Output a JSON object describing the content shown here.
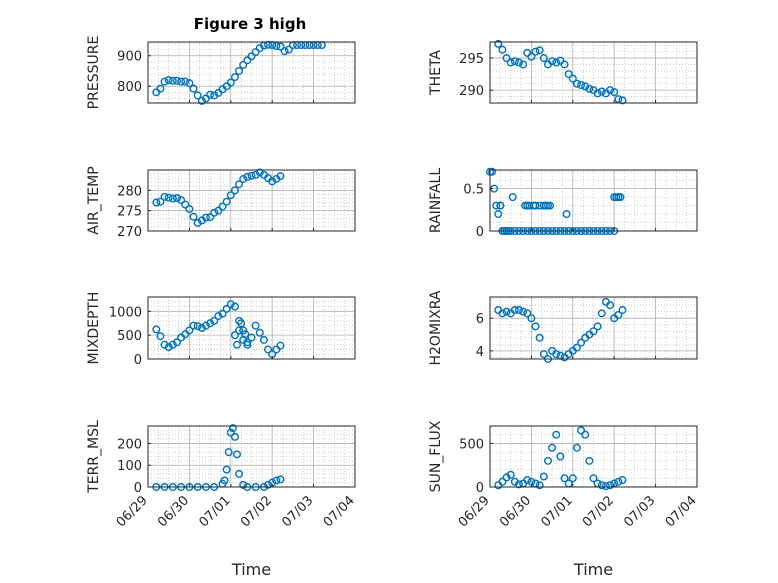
{
  "title": "Figure 3 high",
  "xlabel": "Time",
  "x_ticks": [
    "06/29",
    "06/30",
    "07/01",
    "07/02",
    "07/03",
    "07/04"
  ],
  "colors": {
    "marker": "#0072bd",
    "axis": "#262626",
    "grid": "#b0b0b0"
  },
  "chart_data": [
    {
      "type": "scatter",
      "name": "PRESSURE",
      "ylabel": "PRESSURE",
      "ylim": [
        745,
        945
      ],
      "yticks": [
        800,
        900
      ],
      "x": [
        0.2,
        0.3,
        0.4,
        0.5,
        0.6,
        0.7,
        0.8,
        0.9,
        1.0,
        1.1,
        1.2,
        1.3,
        1.4,
        1.5,
        1.6,
        1.7,
        1.8,
        1.9,
        2.0,
        2.1,
        2.2,
        2.3,
        2.4,
        2.5,
        2.6,
        2.7,
        2.8,
        2.9,
        3.0,
        3.1,
        3.2,
        3.3,
        3.4,
        3.5,
        3.6,
        3.7,
        3.8,
        3.9,
        4.0,
        4.1,
        4.2
      ],
      "y": [
        780,
        792,
        815,
        820,
        818,
        818,
        815,
        815,
        810,
        792,
        770,
        752,
        760,
        772,
        770,
        778,
        790,
        800,
        812,
        830,
        850,
        870,
        885,
        898,
        912,
        925,
        933,
        936,
        935,
        932,
        930,
        915,
        920,
        935,
        935,
        935,
        935,
        935,
        935,
        935,
        935
      ]
    },
    {
      "type": "scatter",
      "name": "THETA",
      "ylabel": "THETA",
      "ylim": [
        288,
        297.5
      ],
      "yticks": [
        290,
        295
      ],
      "x": [
        0.2,
        0.3,
        0.4,
        0.5,
        0.6,
        0.7,
        0.8,
        0.9,
        1.0,
        1.1,
        1.2,
        1.3,
        1.4,
        1.5,
        1.6,
        1.7,
        1.8,
        1.9,
        2.0,
        2.1,
        2.2,
        2.3,
        2.4,
        2.5,
        2.6,
        2.7,
        2.8,
        2.9,
        3.0,
        3.1,
        3.2
      ],
      "y": [
        297.2,
        296.3,
        295.0,
        294.3,
        294.5,
        294.3,
        294.0,
        295.8,
        295.2,
        296.0,
        296.2,
        295.0,
        294.0,
        294.5,
        294.3,
        294.6,
        294.0,
        292.5,
        291.8,
        291.0,
        290.8,
        290.6,
        290.2,
        290.0,
        289.5,
        289.8,
        289.5,
        290.0,
        289.7,
        288.6,
        288.4
      ]
    },
    {
      "type": "scatter",
      "name": "AIR_TEMP",
      "ylabel": "AIR_TEMP",
      "ylim": [
        270,
        285
      ],
      "yticks": [
        270,
        275,
        280
      ],
      "x": [
        0.2,
        0.3,
        0.4,
        0.5,
        0.6,
        0.7,
        0.8,
        0.9,
        1.0,
        1.1,
        1.2,
        1.3,
        1.4,
        1.5,
        1.6,
        1.7,
        1.8,
        1.9,
        2.0,
        2.1,
        2.2,
        2.3,
        2.4,
        2.5,
        2.6,
        2.7,
        2.8,
        2.9,
        3.0,
        3.1,
        3.2
      ],
      "y": [
        277,
        277.2,
        278.4,
        278.2,
        278.0,
        278.1,
        277.6,
        276.5,
        275.4,
        273.5,
        272.0,
        272.6,
        273.3,
        273.4,
        274.5,
        275.0,
        276.0,
        277.2,
        278.8,
        280.0,
        281.5,
        282.8,
        283.3,
        283.6,
        283.8,
        284.4,
        283.8,
        283.0,
        282.2,
        282.8,
        283.5
      ]
    },
    {
      "type": "scatter",
      "name": "RAINFALL",
      "ylabel": "RAINFALL",
      "ylim": [
        0,
        0.72
      ],
      "yticks": [
        0,
        0.5
      ],
      "x": [
        0.0,
        0.05,
        0.1,
        0.15,
        0.2,
        0.25,
        0.3,
        0.35,
        0.4,
        0.45,
        0.5,
        0.6,
        0.7,
        0.8,
        0.9,
        1.0,
        1.1,
        1.2,
        1.3,
        1.4,
        1.5,
        1.6,
        1.7,
        1.8,
        1.9,
        2.0,
        2.1,
        2.2,
        2.3,
        2.4,
        2.5,
        2.6,
        2.7,
        2.8,
        2.9,
        3.0,
        0.85,
        0.9,
        0.95,
        1.05,
        1.1,
        1.2,
        1.3,
        1.35,
        1.4,
        1.45,
        0.25,
        0.55,
        1.85,
        3.0,
        3.05,
        3.1,
        3.15
      ],
      "y": [
        0.7,
        0.7,
        0.5,
        0.3,
        0.2,
        0.3,
        0,
        0,
        0,
        0,
        0,
        0,
        0,
        0,
        0,
        0,
        0,
        0,
        0,
        0,
        0,
        0,
        0,
        0,
        0,
        0,
        0,
        0,
        0,
        0,
        0,
        0,
        0,
        0,
        0,
        0,
        0.3,
        0.3,
        0.3,
        0.3,
        0.3,
        0.3,
        0.3,
        0.3,
        0.3,
        0.3,
        0.3,
        0.4,
        0.2,
        0.4,
        0.4,
        0.4,
        0.4
      ]
    },
    {
      "type": "scatter",
      "name": "MIXDEPTH",
      "ylabel": "MIXDEPTH",
      "ylim": [
        0,
        1300
      ],
      "yticks": [
        0,
        500,
        1000
      ],
      "x": [
        0.2,
        0.3,
        0.4,
        0.5,
        0.6,
        0.7,
        0.8,
        0.9,
        1.0,
        1.1,
        1.2,
        1.3,
        1.4,
        1.5,
        1.6,
        1.7,
        1.8,
        1.9,
        2.0,
        2.1,
        2.2,
        2.3,
        2.4,
        2.5,
        2.6,
        2.7,
        2.8,
        2.9,
        3.0,
        3.1,
        3.2,
        2.1,
        2.15,
        2.2,
        2.25,
        2.3,
        2.35,
        2.4
      ],
      "y": [
        620,
        480,
        300,
        250,
        300,
        350,
        450,
        520,
        600,
        700,
        690,
        650,
        700,
        750,
        800,
        900,
        950,
        1050,
        1150,
        1100,
        600,
        400,
        300,
        450,
        700,
        550,
        400,
        200,
        100,
        200,
        280,
        500,
        300,
        800,
        750,
        600,
        520,
        350
      ]
    },
    {
      "type": "scatter",
      "name": "H2OMIXRA",
      "ylabel": "H2OMIXRA",
      "ylim": [
        3.5,
        7.3
      ],
      "yticks": [
        4,
        6
      ],
      "x": [
        0.2,
        0.3,
        0.4,
        0.5,
        0.6,
        0.7,
        0.8,
        0.9,
        1.0,
        1.1,
        1.2,
        1.3,
        1.4,
        1.5,
        1.6,
        1.7,
        1.8,
        1.9,
        2.0,
        2.1,
        2.2,
        2.3,
        2.4,
        2.5,
        2.6,
        2.7,
        2.8,
        2.9,
        3.0,
        3.1,
        3.2
      ],
      "y": [
        6.5,
        6.3,
        6.4,
        6.3,
        6.5,
        6.5,
        6.4,
        6.3,
        6.0,
        5.5,
        4.8,
        3.8,
        3.5,
        4.0,
        3.8,
        3.7,
        3.6,
        3.8,
        4.0,
        4.2,
        4.5,
        4.8,
        5.0,
        5.2,
        5.5,
        6.3,
        7.0,
        6.8,
        6.0,
        6.2,
        6.5
      ]
    },
    {
      "type": "scatter",
      "name": "TERR_MSL",
      "ylabel": "TERR_MSL",
      "ylim": [
        0,
        280
      ],
      "yticks": [
        0,
        100,
        200
      ],
      "x": [
        0.2,
        0.4,
        0.6,
        0.8,
        1.0,
        1.2,
        1.4,
        1.6,
        1.8,
        1.85,
        1.9,
        1.95,
        2.0,
        2.05,
        2.1,
        2.15,
        2.2,
        2.3,
        2.4,
        2.6,
        2.8,
        2.9,
        3.0,
        3.1,
        3.2
      ],
      "y": [
        0,
        0,
        0,
        0,
        0,
        0,
        0,
        0,
        15,
        30,
        80,
        160,
        250,
        270,
        230,
        150,
        60,
        10,
        0,
        0,
        0,
        10,
        20,
        30,
        35
      ]
    },
    {
      "type": "scatter",
      "name": "SUN_FLUX",
      "ylabel": "SUN_FLUX",
      "ylim": [
        0,
        700
      ],
      "yticks": [
        0,
        500
      ],
      "x": [
        0.2,
        0.3,
        0.4,
        0.5,
        0.6,
        0.7,
        0.8,
        0.9,
        1.0,
        1.1,
        1.2,
        1.3,
        1.4,
        1.5,
        1.6,
        1.7,
        1.8,
        1.9,
        2.0,
        2.1,
        2.2,
        2.3,
        2.4,
        2.5,
        2.6,
        2.7,
        2.8,
        2.9,
        3.0,
        3.1,
        3.2
      ],
      "y": [
        20,
        60,
        110,
        140,
        60,
        30,
        40,
        80,
        60,
        40,
        20,
        120,
        300,
        450,
        600,
        350,
        100,
        40,
        100,
        450,
        650,
        600,
        300,
        100,
        40,
        20,
        10,
        20,
        40,
        60,
        80
      ]
    }
  ]
}
